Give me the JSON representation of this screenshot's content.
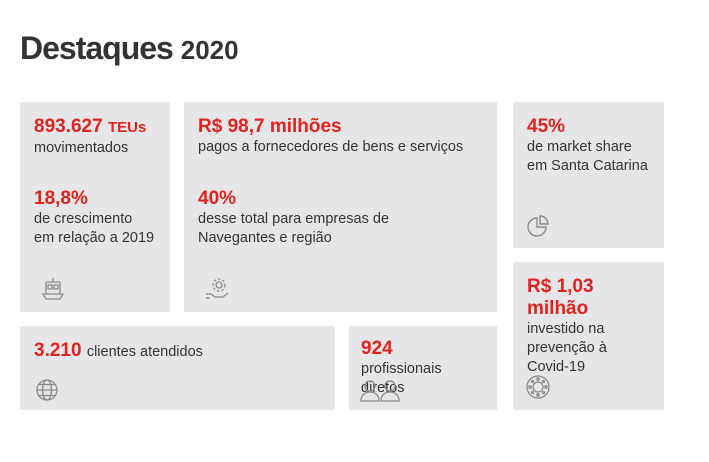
{
  "title": {
    "main": "Destaques",
    "year": "2020"
  },
  "cards": {
    "teus": {
      "value": "893.627",
      "unit": "TEUs",
      "label": "movimentados",
      "sub_value": "18,8%",
      "sub_label_1": "de crescimento",
      "sub_label_2": "em relação a 2019",
      "icon": "ship-icon"
    },
    "fornecedores": {
      "value": "R$ 98,7 milhões",
      "label": "pagos a fornecedores de bens e serviços",
      "sub_value": "40%",
      "sub_label_1": "desse total para empresas de",
      "sub_label_2": "Navegantes e região",
      "icon": "gear-hand-icon"
    },
    "market": {
      "value": "45%",
      "label_1": "de market share",
      "label_2": "em Santa Catarina",
      "icon": "pie-chart-icon"
    },
    "covid": {
      "value": "R$ 1,03 milhão",
      "label_1": "investido na",
      "label_2": "prevenção à",
      "label_3": "Covid-19",
      "icon": "virus-icon"
    },
    "clientes": {
      "value": "3.210",
      "label": "clientes atendidos",
      "icon": "globe-icon"
    },
    "profissionais": {
      "value": "924",
      "label": "profissionais diretos",
      "icon": "people-icon"
    }
  },
  "colors": {
    "accent": "#e1231e",
    "card_bg": "#e6e6e8",
    "text": "#333333"
  }
}
